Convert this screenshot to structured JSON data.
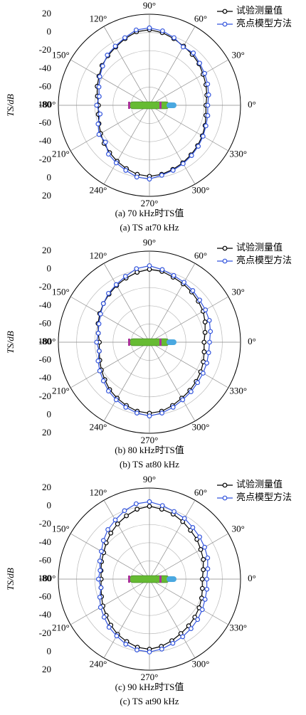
{
  "chart_data": [
    {
      "type": "polar",
      "ylabel": "TS/dB",
      "caption": "(a) 70 kHz时TS值",
      "caption_en": "(a) TS at70 kHz",
      "x": [
        0,
        10,
        20,
        30,
        40,
        50,
        60,
        70,
        80,
        90,
        100,
        110,
        120,
        130,
        140,
        150,
        160,
        170,
        180,
        190,
        200,
        210,
        220,
        230,
        240,
        250,
        260,
        270,
        280,
        290,
        300,
        310,
        320,
        330,
        340,
        350
      ],
      "series": [
        {
          "name": "试验测量值",
          "color": "#000000",
          "values": [
            -18,
            -16,
            -14,
            -12,
            -9,
            -7,
            -5,
            -2,
            1,
            3,
            2,
            -2,
            -6,
            -9,
            -12,
            -16,
            -19,
            -22,
            -24,
            -23,
            -21,
            -18,
            -15,
            -12,
            -9,
            -6,
            -3,
            -2,
            -3,
            -5,
            -7,
            -9,
            -11,
            -13,
            -15,
            -17
          ]
        },
        {
          "name": "亮点模型方法",
          "color": "#3355dd",
          "values": [
            -16,
            -14,
            -12,
            -10,
            -8,
            -5,
            -6,
            -1,
            3,
            5,
            4,
            -1,
            -5,
            -8,
            -13,
            -17,
            -21,
            -24,
            -22,
            -25,
            -20,
            -16,
            -17,
            -10,
            -7,
            -4,
            0,
            1,
            -2,
            -4,
            -6,
            -8,
            -10,
            -12,
            -14,
            -15
          ]
        }
      ],
      "ylim": [
        -80,
        20
      ],
      "yticks": [
        -80,
        -60,
        -40,
        -20,
        0,
        20
      ],
      "xticks": [
        {
          "value": 0,
          "label": "0°"
        },
        {
          "value": 30,
          "label": "30°"
        },
        {
          "value": 60,
          "label": "60°"
        },
        {
          "value": 90,
          "label": "90°"
        },
        {
          "value": 120,
          "label": "120°"
        },
        {
          "value": 150,
          "label": "150°"
        },
        {
          "value": 180,
          "label": "180°"
        },
        {
          "value": 210,
          "label": "210°"
        },
        {
          "value": 240,
          "label": "240°"
        },
        {
          "value": 270,
          "label": "270°"
        },
        {
          "value": 300,
          "label": "300°"
        },
        {
          "value": 330,
          "label": "330°"
        }
      ],
      "grid": true,
      "legend": "upper right"
    },
    {
      "type": "polar",
      "ylabel": "TS/dB",
      "caption": "(b) 80 kHz时TS值",
      "caption_en": "(b) TS at80 kHz",
      "x": [
        0,
        10,
        20,
        30,
        40,
        50,
        60,
        70,
        80,
        90,
        100,
        110,
        120,
        130,
        140,
        150,
        160,
        170,
        180,
        190,
        200,
        210,
        220,
        230,
        240,
        250,
        260,
        270,
        280,
        290,
        300,
        310,
        320,
        330,
        340,
        350
      ],
      "series": [
        {
          "name": "试验测量值",
          "color": "#000000",
          "values": [
            -20,
            -18,
            -15,
            -12,
            -10,
            -8,
            -6,
            -4,
            -1,
            0,
            -2,
            -5,
            -8,
            -11,
            -14,
            -17,
            -20,
            -23,
            -25,
            -24,
            -22,
            -19,
            -16,
            -12,
            -9,
            -6,
            -3,
            -2,
            -3,
            -6,
            -9,
            -11,
            -13,
            -15,
            -17,
            -19
          ]
        },
        {
          "name": "亮点模型方法",
          "color": "#3355dd",
          "values": [
            -14,
            -12,
            -10,
            -9,
            -8,
            -6,
            -4,
            -2,
            1,
            4,
            2,
            -3,
            -7,
            -10,
            -14,
            -18,
            -21,
            -23,
            -22,
            -24,
            -20,
            -17,
            -14,
            -10,
            -7,
            -4,
            -1,
            1,
            -1,
            -4,
            -7,
            -9,
            -11,
            -12,
            -13,
            -14
          ]
        }
      ],
      "ylim": [
        -80,
        20
      ],
      "yticks": [
        -80,
        -60,
        -40,
        -20,
        0,
        20
      ],
      "xticks": [
        {
          "value": 0,
          "label": "0°"
        },
        {
          "value": 30,
          "label": "30°"
        },
        {
          "value": 60,
          "label": "60°"
        },
        {
          "value": 90,
          "label": "90°"
        },
        {
          "value": 120,
          "label": "120°"
        },
        {
          "value": 150,
          "label": "150°"
        },
        {
          "value": 180,
          "label": "180°"
        },
        {
          "value": 210,
          "label": "210°"
        },
        {
          "value": 240,
          "label": "240°"
        },
        {
          "value": 270,
          "label": "270°"
        },
        {
          "value": 300,
          "label": "300°"
        },
        {
          "value": 330,
          "label": "330°"
        }
      ],
      "grid": true,
      "legend": "upper right"
    },
    {
      "type": "polar",
      "ylabel": "TS/dB",
      "caption": "(c) 90 kHz时TS值",
      "caption_en": "(c) TS at90 kHz",
      "x": [
        0,
        10,
        20,
        30,
        40,
        50,
        60,
        70,
        80,
        90,
        100,
        110,
        120,
        130,
        140,
        150,
        160,
        170,
        180,
        190,
        200,
        210,
        220,
        230,
        240,
        250,
        260,
        270,
        280,
        290,
        300,
        310,
        320,
        330,
        340,
        350
      ],
      "series": [
        {
          "name": "试验测量值",
          "color": "#000000",
          "values": [
            -22,
            -20,
            -17,
            -15,
            -12,
            -10,
            -7,
            -4,
            -2,
            0,
            -2,
            -6,
            -10,
            -14,
            -18,
            -22,
            -24,
            -26,
            -27,
            -26,
            -24,
            -21,
            -18,
            -14,
            -10,
            -7,
            -4,
            -3,
            -5,
            -8,
            -11,
            -13,
            -15,
            -17,
            -19,
            -21
          ]
        },
        {
          "name": "亮点模型方法",
          "color": "#3355dd",
          "values": [
            -17,
            -15,
            -12,
            -10,
            -8,
            -6,
            -3,
            -1,
            2,
            5,
            4,
            0,
            -5,
            -9,
            -14,
            -19,
            -22,
            -25,
            -24,
            -26,
            -22,
            -18,
            -15,
            -11,
            -8,
            -4,
            -1,
            0,
            -2,
            -5,
            -7,
            -9,
            -11,
            -13,
            -15,
            -16
          ]
        }
      ],
      "ylim": [
        -80,
        20
      ],
      "yticks": [
        -80,
        -60,
        -40,
        -20,
        0,
        20
      ],
      "xticks": [
        {
          "value": 0,
          "label": "0°"
        },
        {
          "value": 30,
          "label": "30°"
        },
        {
          "value": 60,
          "label": "60°"
        },
        {
          "value": 90,
          "label": "90°"
        },
        {
          "value": 120,
          "label": "120°"
        },
        {
          "value": 150,
          "label": "150°"
        },
        {
          "value": 180,
          "label": "180°"
        },
        {
          "value": 210,
          "label": "210°"
        },
        {
          "value": 240,
          "label": "240°"
        },
        {
          "value": 270,
          "label": "270°"
        },
        {
          "value": 300,
          "label": "300°"
        },
        {
          "value": 330,
          "label": "330°"
        }
      ],
      "grid": true,
      "legend": "upper right"
    }
  ]
}
